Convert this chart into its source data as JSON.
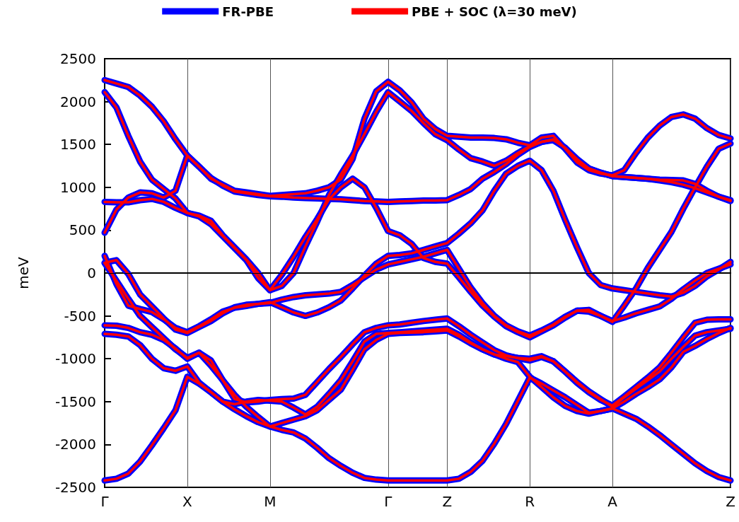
{
  "chart_data": {
    "type": "line",
    "ylabel": "meV",
    "categories": [
      "Γ",
      null,
      null,
      null,
      null,
      null,
      null,
      "X",
      null,
      null,
      null,
      null,
      null,
      null,
      "M",
      null,
      null,
      null,
      null,
      null,
      null,
      null,
      null,
      null,
      "Γ",
      null,
      null,
      null,
      null,
      "Z",
      null,
      null,
      null,
      null,
      null,
      null,
      "R",
      null,
      null,
      null,
      null,
      null,
      null,
      "A",
      null,
      null,
      null,
      null,
      null,
      null,
      null,
      null,
      null,
      "Z"
    ],
    "ylim": [
      -2500,
      2500
    ],
    "yticks": [
      -2500,
      -2000,
      -1500,
      -1000,
      -500,
      0,
      500,
      1000,
      1500,
      2000,
      2500
    ],
    "grid": "x",
    "legend": "top",
    "marker": "none",
    "ref_lines": [
      {
        "axis": "y",
        "value": 0,
        "color": "#000000"
      }
    ],
    "series": [
      {
        "name": "FR-PBE",
        "color": "#0000ff",
        "values": [
          2250,
          2210,
          2170,
          2070,
          1940,
          1770,
          1560,
          1370,
          1240,
          1100,
          1030,
          960,
          940,
          920,
          900,
          910,
          920,
          930,
          960,
          1000,
          1090,
          1330,
          1800,
          2120,
          2230,
          2130,
          1990,
          1800,
          1680,
          1600,
          1590,
          1580,
          1580,
          1575,
          1560,
          1520,
          1490,
          1580,
          1600,
          1450,
          1290,
          1200,
          1160,
          1140,
          1200,
          1400,
          1580,
          1720,
          1820,
          1850,
          1800,
          1690,
          1610,
          1570
        ]
      },
      {
        "color": "#0000ff",
        "values": [
          2110,
          1930,
          1600,
          1300,
          1090,
          980,
          870,
          700,
          670,
          610,
          440,
          300,
          160,
          0,
          -200,
          -150,
          0,
          310,
          600,
          910,
          1150,
          1370,
          1620,
          1880,
          2110,
          2000,
          1890,
          1750,
          1620,
          1550,
          1440,
          1340,
          1300,
          1250,
          1310,
          1400,
          1480,
          1530,
          1550,
          1460,
          1330,
          1220,
          1170,
          1130,
          1120,
          1110,
          1100,
          1080,
          1060,
          1030,
          990,
          940,
          890,
          850
        ]
      },
      {
        "color": "#0000ff",
        "values": [
          470,
          740,
          880,
          940,
          930,
          880,
          960,
          1370,
          1240,
          1110,
          1020,
          950,
          930,
          910,
          895,
          890,
          880,
          875,
          870,
          865,
          860,
          850,
          840,
          835,
          830,
          835,
          840,
          845,
          845,
          850,
          910,
          980,
          1100,
          1180,
          1270,
          1380,
          1470,
          1530,
          1560,
          1460,
          1310,
          1220,
          1170,
          1130,
          1120,
          1110,
          1100,
          1090,
          1085,
          1080,
          1040,
          960,
          890,
          840
        ]
      },
      {
        "color": "#0000ff",
        "values": [
          830,
          825,
          825,
          850,
          865,
          830,
          760,
          700,
          660,
          570,
          430,
          290,
          150,
          -60,
          -200,
          -20,
          190,
          420,
          630,
          860,
          1000,
          1100,
          1000,
          760,
          490,
          440,
          340,
          175,
          130,
          110,
          -50,
          -220,
          -380,
          -510,
          -620,
          -690,
          -750,
          -680,
          -610,
          -520,
          -440,
          -430,
          -500,
          -570,
          -380,
          -180,
          60,
          270,
          480,
          750,
          1000,
          1240,
          1450,
          1510
        ]
      },
      {
        "color": "#0000ff",
        "values": [
          200,
          -130,
          -380,
          -420,
          -455,
          -540,
          -640,
          -690,
          -620,
          -540,
          -450,
          -405,
          -385,
          -360,
          -340,
          -400,
          -460,
          -500,
          -460,
          -400,
          -320,
          -180,
          -30,
          110,
          200,
          210,
          230,
          270,
          310,
          350,
          460,
          580,
          730,
          960,
          1160,
          1250,
          1310,
          1200,
          960,
          620,
          300,
          0,
          -140,
          -180,
          -200,
          -220,
          -240,
          -260,
          -275,
          -230,
          -150,
          -40,
          40,
          130
        ]
      },
      {
        "color": "#0000ff",
        "values": [
          115,
          -90,
          -300,
          -500,
          -630,
          -760,
          -890,
          -990,
          -930,
          -1020,
          -1250,
          -1470,
          -1510,
          -1500,
          -1480,
          -1470,
          -1465,
          -1420,
          -1270,
          -1120,
          -980,
          -830,
          -690,
          -640,
          -610,
          -600,
          -580,
          -560,
          -545,
          -530,
          -620,
          -720,
          -810,
          -900,
          -960,
          -995,
          -1020,
          -980,
          -1030,
          -1150,
          -1280,
          -1390,
          -1480,
          -1545,
          -1440,
          -1330,
          -1220,
          -1100,
          -930,
          -750,
          -580,
          -545,
          -540,
          -540
        ]
      },
      {
        "color": "#0000ff",
        "values": [
          -610,
          -615,
          -640,
          -690,
          -720,
          -780,
          -880,
          -1000,
          -930,
          -1080,
          -1250,
          -1420,
          -1560,
          -1680,
          -1790,
          -1750,
          -1710,
          -1670,
          -1600,
          -1480,
          -1360,
          -1130,
          -890,
          -780,
          -710,
          -700,
          -695,
          -690,
          -680,
          -670,
          -740,
          -820,
          -890,
          -950,
          -1000,
          -1040,
          -1210,
          -1330,
          -1450,
          -1550,
          -1610,
          -1640,
          -1610,
          -1580,
          -1500,
          -1410,
          -1330,
          -1240,
          -1100,
          -920,
          -850,
          -770,
          -700,
          -640
        ]
      },
      {
        "color": "#0000ff",
        "values": [
          -710,
          -720,
          -740,
          -840,
          -1000,
          -1110,
          -1140,
          -1090,
          -1280,
          -1390,
          -1500,
          -1590,
          -1670,
          -1740,
          -1790,
          -1830,
          -1860,
          -1930,
          -2040,
          -2160,
          -2250,
          -2330,
          -2390,
          -2410,
          -2420,
          -2420,
          -2420,
          -2420,
          -2420,
          -2420,
          -2400,
          -2320,
          -2190,
          -1990,
          -1760,
          -1490,
          -1220,
          -1290,
          -1370,
          -1450,
          -1540,
          -1630,
          -1610,
          -1580,
          -1640,
          -1700,
          -1790,
          -1890,
          -2000,
          -2110,
          -2220,
          -2310,
          -2380,
          -2420
        ]
      },
      {
        "color": "#0000ff",
        "values": [
          -2420,
          -2400,
          -2340,
          -2200,
          -2010,
          -1810,
          -1600,
          -1210,
          -1290,
          -1390,
          -1500,
          -1530,
          -1500,
          -1480,
          -1490,
          -1500,
          -1570,
          -1650,
          -1560,
          -1410,
          -1250,
          -1030,
          -800,
          -710,
          -700,
          -690,
          -680,
          -670,
          -660,
          -650,
          -720,
          -810,
          -890,
          -950,
          -970,
          -990,
          -1000,
          -970,
          -1030,
          -1150,
          -1270,
          -1380,
          -1470,
          -1560,
          -1450,
          -1350,
          -1250,
          -1150,
          -1000,
          -860,
          -730,
          -690,
          -670,
          -650
        ]
      },
      {
        "color": "#0000ff",
        "values": [
          120,
          150,
          -10,
          -250,
          -390,
          -530,
          -660,
          -700,
          -630,
          -560,
          -470,
          -400,
          -370,
          -360,
          -350,
          -310,
          -280,
          -260,
          -250,
          -240,
          -220,
          -140,
          -50,
          40,
          100,
          130,
          160,
          190,
          230,
          270,
          50,
          -170,
          -350,
          -500,
          -610,
          -680,
          -730,
          -670,
          -600,
          -510,
          -440,
          -450,
          -500,
          -560,
          -520,
          -470,
          -430,
          -390,
          -300,
          -190,
          -90,
          0,
          50,
          100
        ]
      },
      {
        "name": "PBE + SOC (λ=30 meV)",
        "color": "#ff0000",
        "values": [
          2250,
          2210,
          2170,
          2070,
          1940,
          1770,
          1560,
          1370,
          1240,
          1100,
          1030,
          960,
          940,
          920,
          900,
          910,
          920,
          930,
          960,
          1000,
          1090,
          1330,
          1800,
          2120,
          2230,
          2130,
          1990,
          1800,
          1680,
          1600,
          1590,
          1580,
          1580,
          1575,
          1560,
          1520,
          1490,
          1580,
          1600,
          1450,
          1290,
          1200,
          1160,
          1140,
          1200,
          1400,
          1580,
          1720,
          1820,
          1850,
          1800,
          1690,
          1610,
          1570
        ]
      },
      {
        "color": "#ff0000",
        "values": [
          2110,
          1930,
          1600,
          1300,
          1090,
          980,
          870,
          700,
          670,
          610,
          440,
          300,
          160,
          0,
          -200,
          -150,
          0,
          310,
          600,
          910,
          1150,
          1370,
          1620,
          1880,
          2110,
          2000,
          1890,
          1750,
          1620,
          1550,
          1440,
          1340,
          1300,
          1250,
          1310,
          1400,
          1480,
          1530,
          1550,
          1460,
          1330,
          1220,
          1170,
          1130,
          1120,
          1110,
          1100,
          1080,
          1060,
          1030,
          990,
          940,
          890,
          850
        ]
      },
      {
        "color": "#ff0000",
        "values": [
          470,
          740,
          880,
          940,
          930,
          880,
          960,
          1370,
          1240,
          1110,
          1020,
          950,
          930,
          910,
          895,
          890,
          880,
          875,
          870,
          865,
          860,
          850,
          840,
          835,
          830,
          835,
          840,
          845,
          845,
          850,
          910,
          980,
          1100,
          1180,
          1270,
          1380,
          1470,
          1530,
          1560,
          1460,
          1310,
          1220,
          1170,
          1130,
          1120,
          1110,
          1100,
          1090,
          1085,
          1080,
          1040,
          960,
          890,
          840
        ]
      },
      {
        "color": "#ff0000",
        "values": [
          830,
          825,
          825,
          850,
          865,
          830,
          760,
          700,
          660,
          570,
          430,
          290,
          150,
          -60,
          -200,
          -20,
          190,
          420,
          630,
          860,
          1000,
          1100,
          1000,
          760,
          490,
          440,
          340,
          175,
          130,
          110,
          -50,
          -220,
          -380,
          -510,
          -620,
          -690,
          -750,
          -680,
          -610,
          -520,
          -440,
          -430,
          -500,
          -570,
          -380,
          -180,
          60,
          270,
          480,
          750,
          1000,
          1240,
          1450,
          1510
        ]
      },
      {
        "color": "#ff0000",
        "values": [
          200,
          -130,
          -380,
          -420,
          -455,
          -540,
          -640,
          -690,
          -620,
          -540,
          -450,
          -405,
          -385,
          -360,
          -340,
          -400,
          -460,
          -500,
          -460,
          -400,
          -320,
          -180,
          -30,
          110,
          200,
          210,
          230,
          270,
          310,
          350,
          460,
          580,
          730,
          960,
          1160,
          1250,
          1310,
          1200,
          960,
          620,
          300,
          0,
          -140,
          -180,
          -200,
          -220,
          -240,
          -260,
          -275,
          -230,
          -150,
          -40,
          40,
          130
        ]
      },
      {
        "color": "#ff0000",
        "values": [
          115,
          -90,
          -300,
          -500,
          -630,
          -760,
          -890,
          -990,
          -930,
          -1020,
          -1250,
          -1470,
          -1510,
          -1500,
          -1480,
          -1470,
          -1465,
          -1420,
          -1270,
          -1120,
          -980,
          -830,
          -690,
          -640,
          -610,
          -600,
          -580,
          -560,
          -545,
          -530,
          -620,
          -720,
          -810,
          -900,
          -960,
          -995,
          -1020,
          -980,
          -1030,
          -1150,
          -1280,
          -1390,
          -1480,
          -1545,
          -1440,
          -1330,
          -1220,
          -1100,
          -930,
          -750,
          -580,
          -545,
          -540,
          -540
        ]
      },
      {
        "color": "#ff0000",
        "values": [
          -610,
          -615,
          -640,
          -690,
          -720,
          -780,
          -880,
          -1000,
          -930,
          -1080,
          -1250,
          -1420,
          -1560,
          -1680,
          -1790,
          -1750,
          -1710,
          -1670,
          -1600,
          -1480,
          -1360,
          -1130,
          -890,
          -780,
          -710,
          -700,
          -695,
          -690,
          -680,
          -670,
          -740,
          -820,
          -890,
          -950,
          -1000,
          -1040,
          -1210,
          -1330,
          -1450,
          -1550,
          -1610,
          -1640,
          -1610,
          -1580,
          -1500,
          -1410,
          -1330,
          -1240,
          -1100,
          -920,
          -850,
          -770,
          -700,
          -640
        ]
      },
      {
        "color": "#ff0000",
        "values": [
          -710,
          -720,
          -740,
          -840,
          -1000,
          -1110,
          -1140,
          -1090,
          -1280,
          -1390,
          -1500,
          -1590,
          -1670,
          -1740,
          -1790,
          -1830,
          -1860,
          -1930,
          -2040,
          -2160,
          -2250,
          -2330,
          -2390,
          -2410,
          -2420,
          -2420,
          -2420,
          -2420,
          -2420,
          -2420,
          -2400,
          -2320,
          -2190,
          -1990,
          -1760,
          -1490,
          -1220,
          -1290,
          -1370,
          -1450,
          -1540,
          -1630,
          -1610,
          -1580,
          -1640,
          -1700,
          -1790,
          -1890,
          -2000,
          -2110,
          -2220,
          -2310,
          -2380,
          -2420
        ]
      },
      {
        "color": "#ff0000",
        "values": [
          -2420,
          -2400,
          -2340,
          -2200,
          -2010,
          -1810,
          -1600,
          -1210,
          -1290,
          -1390,
          -1500,
          -1530,
          -1500,
          -1480,
          -1490,
          -1500,
          -1570,
          -1650,
          -1560,
          -1410,
          -1250,
          -1030,
          -800,
          -710,
          -700,
          -690,
          -680,
          -670,
          -660,
          -650,
          -720,
          -810,
          -890,
          -950,
          -970,
          -990,
          -1000,
          -970,
          -1030,
          -1150,
          -1270,
          -1380,
          -1470,
          -1560,
          -1450,
          -1350,
          -1250,
          -1150,
          -1000,
          -860,
          -730,
          -690,
          -670,
          -650
        ]
      },
      {
        "color": "#ff0000",
        "values": [
          120,
          150,
          -10,
          -250,
          -390,
          -530,
          -660,
          -700,
          -630,
          -560,
          -470,
          -400,
          -370,
          -360,
          -350,
          -310,
          -280,
          -260,
          -250,
          -240,
          -220,
          -140,
          -50,
          40,
          100,
          130,
          160,
          190,
          230,
          270,
          50,
          -170,
          -350,
          -500,
          -610,
          -680,
          -730,
          -670,
          -600,
          -510,
          -440,
          -450,
          -500,
          -560,
          -520,
          -470,
          -430,
          -390,
          -300,
          -190,
          -90,
          0,
          50,
          100
        ]
      }
    ]
  }
}
